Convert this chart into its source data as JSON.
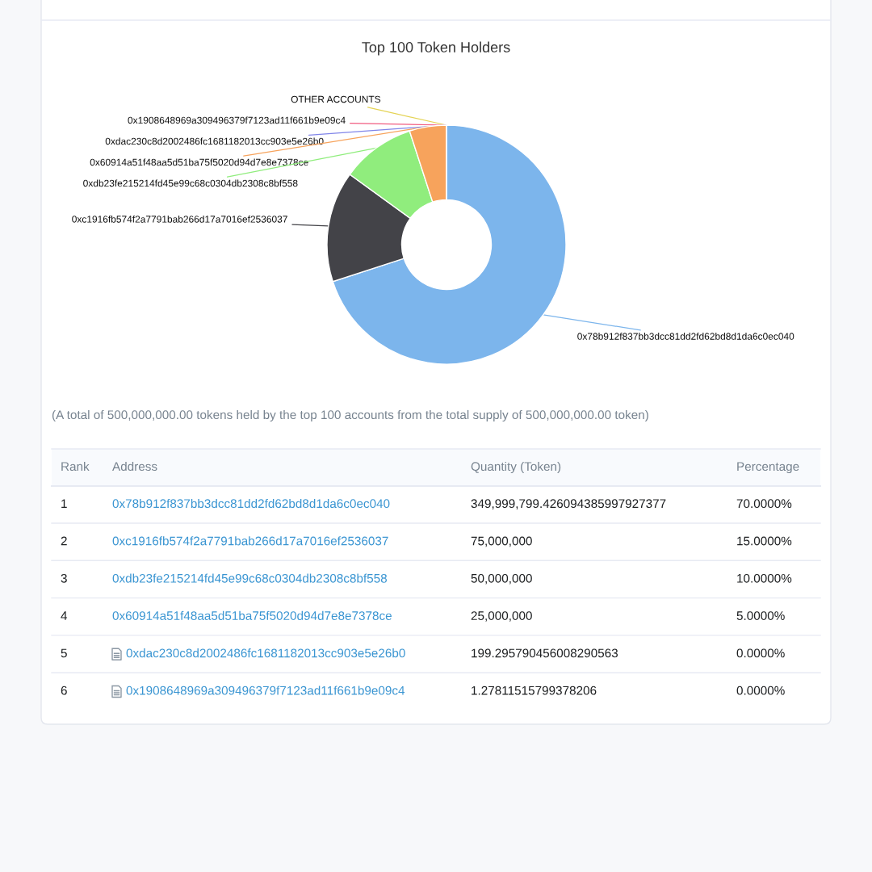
{
  "chart_data": {
    "type": "donut",
    "title": "Top 100 Token Holders",
    "categories": [
      "0x78b912f837bb3dcc81dd2fd62bd8d1da6c0ec040",
      "0xc1916fb574f2a7791bab266d17a7016ef2536037",
      "0xdb23fe215214fd45e99c68c0304db2308c8bf558",
      "0x60914a51f48aa5d51ba75f5020d94d7e8e7378ce",
      "0xdac230c8d2002486fc1681182013cc903e5e26b0",
      "0x1908648969a309496379f7123ad11f661b9e09c4",
      "OTHER ACCOUNTS"
    ],
    "values": [
      70,
      15,
      10,
      5,
      0,
      0,
      0
    ],
    "colors": [
      "#7cb5ec",
      "#434348",
      "#90ed7d",
      "#f7a35c",
      "#8085e9",
      "#f15c80",
      "#e4d354"
    ],
    "annotations": [
      "(A total of 500,000,000.00 tokens held by the top 100 accounts from the total supply of 500,000,000.00 token)",
      "Rank",
      "Address",
      "Quantity (Token)",
      "Percentage",
      "1",
      "349,999,799.426094385997927377",
      "70.0000%",
      "2",
      "75,000,000",
      "15.0000%",
      "3",
      "50,000,000",
      "10.0000%",
      "4",
      "25,000,000",
      "5.0000%",
      "5",
      "199.295790456008290563",
      "0.0000%",
      "6",
      "1.27811515799378206",
      "0.0000%"
    ]
  }
}
